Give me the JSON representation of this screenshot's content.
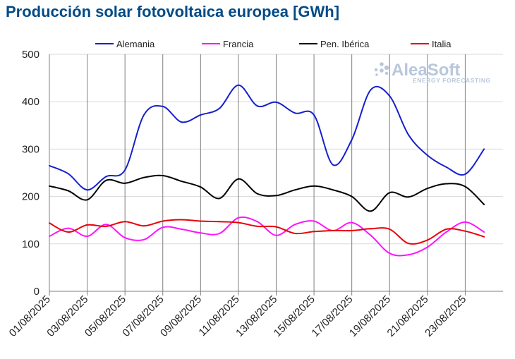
{
  "chart_data": {
    "type": "line",
    "title": "Producción solar fotovoltaica europea [GWh]",
    "xlabel": "",
    "ylabel": "",
    "ylim": [
      0,
      500
    ],
    "yticks": [
      0,
      100,
      200,
      300,
      400,
      500
    ],
    "grid": true,
    "legend_position": "top",
    "x": [
      "01/08/2025",
      "02/08/2025",
      "03/08/2025",
      "04/08/2025",
      "05/08/2025",
      "06/08/2025",
      "07/08/2025",
      "08/08/2025",
      "09/08/2025",
      "10/08/2025",
      "11/08/2025",
      "12/08/2025",
      "13/08/2025",
      "14/08/2025",
      "15/08/2025",
      "16/08/2025",
      "17/08/2025",
      "18/08/2025",
      "19/08/2025",
      "20/08/2025",
      "21/08/2025",
      "22/08/2025",
      "23/08/2025",
      "24/08/2025"
    ],
    "xtick_labels": [
      "01/08/2025",
      "03/08/2025",
      "05/08/2025",
      "07/08/2025",
      "09/08/2025",
      "11/08/2025",
      "13/08/2025",
      "15/08/2025",
      "17/08/2025",
      "19/08/2025",
      "21/08/2025",
      "23/08/2025"
    ],
    "series": [
      {
        "name": "Alemania",
        "color": "#1520CC",
        "values": [
          265,
          248,
          214,
          242,
          256,
          372,
          390,
          357,
          372,
          386,
          435,
          391,
          399,
          376,
          372,
          267,
          320,
          425,
          412,
          330,
          287,
          262,
          247,
          300
        ]
      },
      {
        "name": "Francia",
        "color": "#FF14FF",
        "values": [
          116,
          133,
          116,
          141,
          113,
          109,
          135,
          131,
          123,
          122,
          155,
          147,
          118,
          141,
          148,
          128,
          145,
          118,
          80,
          77,
          93,
          125,
          146,
          125
        ]
      },
      {
        "name": "Pen. Ibérica",
        "color": "#000000",
        "values": [
          222,
          212,
          193,
          234,
          228,
          240,
          244,
          232,
          220,
          196,
          237,
          206,
          202,
          214,
          222,
          214,
          200,
          169,
          208,
          199,
          217,
          227,
          221,
          183
        ]
      },
      {
        "name": "Italia",
        "color": "#E8000B",
        "values": [
          144,
          125,
          140,
          137,
          147,
          138,
          148,
          151,
          148,
          147,
          145,
          137,
          136,
          122,
          126,
          128,
          128,
          132,
          131,
          101,
          108,
          131,
          127,
          115
        ]
      }
    ]
  },
  "watermark": {
    "brand": "AleaSoft",
    "tagline": "ENERGY FORECASTING"
  }
}
